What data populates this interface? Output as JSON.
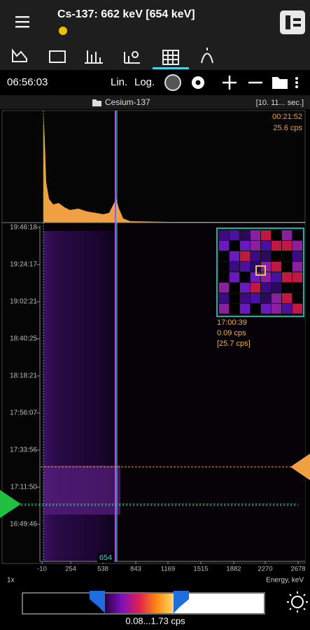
{
  "header": {
    "title": "Cs-137: 662 keV [654 keV]"
  },
  "toolbar": {
    "time": "06:56:03",
    "lin": "Lin.",
    "log": "Log."
  },
  "source": {
    "name": "Cesium-137",
    "interval": "[10. 11... sec.]"
  },
  "spectrum": {
    "elapsed": "00:21:52",
    "rate": "25.6 cps"
  },
  "waterfall": {
    "time_labels": [
      "19:46:18",
      "19:24:17",
      "19:02:21",
      "18:40:25",
      "18:18:21",
      "17:56:07",
      "17:33:56",
      "17:11:50",
      "16:49:46"
    ],
    "energy_labels": [
      -10,
      254,
      538,
      843,
      1169,
      1515,
      1882,
      2270,
      2678
    ],
    "marker": "654",
    "zoom": "1x",
    "axis_title": "Energy, keV"
  },
  "inset": {
    "time": "17:00:39",
    "rate": "0.09 cps",
    "total": "[25.7 cps]"
  },
  "colorbar": {
    "range": "0.08...1.73 cps"
  }
}
